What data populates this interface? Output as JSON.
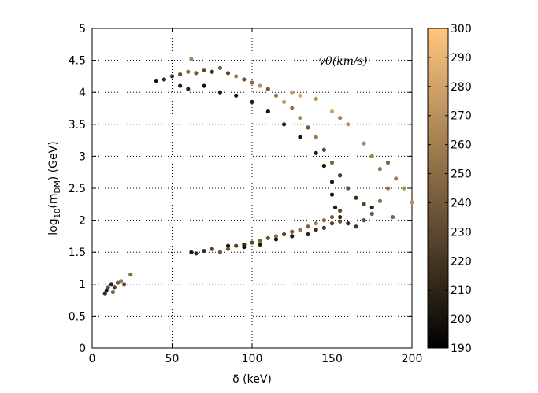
{
  "chart_data": {
    "type": "scatter",
    "xlabel": "δ (keV)",
    "ylabel_parts": [
      "log",
      "10",
      "(m",
      "DM",
      ") (GeV)"
    ],
    "annotation": "v0(km/s)",
    "xlim": [
      0,
      200
    ],
    "ylim": [
      0,
      5
    ],
    "xticks": [
      0,
      50,
      100,
      150,
      200
    ],
    "yticks": [
      0,
      0.5,
      1,
      1.5,
      2,
      2.5,
      3,
      3.5,
      4,
      4.5,
      5
    ],
    "grid": true,
    "colorbar": {
      "label_min": 190,
      "label_max": 300,
      "ticks": [
        190,
        200,
        210,
        220,
        230,
        240,
        250,
        260,
        270,
        280,
        290,
        300
      ],
      "colormap": "copper",
      "color_low": "#000000",
      "color_high": "#ffc77f"
    },
    "series": [
      {
        "points": [
          [
            8,
            0.85,
            215
          ],
          [
            10,
            0.95,
            235
          ],
          [
            12,
            1.0,
            210
          ],
          [
            14,
            0.95,
            225
          ],
          [
            16,
            1.02,
            240
          ],
          [
            18,
            1.05,
            255
          ],
          [
            20,
            1.0,
            230
          ],
          [
            24,
            1.15,
            250
          ],
          [
            9,
            0.9,
            205
          ],
          [
            13,
            0.88,
            245
          ],
          [
            40,
            4.18,
            200
          ],
          [
            45,
            4.2,
            210
          ],
          [
            50,
            4.25,
            220
          ],
          [
            55,
            4.28,
            235
          ],
          [
            60,
            4.32,
            250
          ],
          [
            62,
            4.52,
            265
          ],
          [
            65,
            4.3,
            240
          ],
          [
            70,
            4.35,
            230
          ],
          [
            75,
            4.32,
            215
          ],
          [
            80,
            4.38,
            245
          ],
          [
            85,
            4.3,
            225
          ],
          [
            90,
            4.25,
            260
          ],
          [
            95,
            4.2,
            235
          ],
          [
            100,
            4.15,
            250
          ],
          [
            105,
            4.1,
            270
          ],
          [
            110,
            4.05,
            240
          ],
          [
            115,
            3.95,
            255
          ],
          [
            120,
            3.85,
            275
          ],
          [
            125,
            3.75,
            250
          ],
          [
            130,
            3.6,
            265
          ],
          [
            135,
            3.45,
            240
          ],
          [
            140,
            3.3,
            255
          ],
          [
            145,
            3.1,
            230
          ],
          [
            150,
            2.9,
            245
          ],
          [
            155,
            2.7,
            220
          ],
          [
            160,
            2.5,
            235
          ],
          [
            165,
            2.35,
            215
          ],
          [
            170,
            2.25,
            225
          ],
          [
            175,
            2.2,
            210
          ],
          [
            55,
            4.1,
            205
          ],
          [
            60,
            4.05,
            210
          ],
          [
            70,
            4.1,
            200
          ],
          [
            80,
            4.0,
            205
          ],
          [
            90,
            3.95,
            200
          ],
          [
            100,
            3.85,
            205
          ],
          [
            110,
            3.7,
            200
          ],
          [
            120,
            3.5,
            205
          ],
          [
            130,
            3.3,
            200
          ],
          [
            140,
            3.05,
            205
          ],
          [
            145,
            2.85,
            200
          ],
          [
            150,
            2.6,
            205
          ],
          [
            150,
            2.4,
            200
          ],
          [
            152,
            2.2,
            205
          ],
          [
            155,
            2.05,
            210
          ],
          [
            160,
            1.95,
            215
          ],
          [
            165,
            1.9,
            220
          ],
          [
            170,
            2.0,
            230
          ],
          [
            175,
            2.1,
            240
          ],
          [
            180,
            2.3,
            250
          ],
          [
            185,
            2.5,
            255
          ],
          [
            190,
            2.65,
            260
          ],
          [
            195,
            2.5,
            265
          ],
          [
            200,
            2.28,
            270
          ],
          [
            188,
            2.05,
            245
          ],
          [
            160,
            3.5,
            270
          ],
          [
            170,
            3.2,
            265
          ],
          [
            175,
            3.0,
            260
          ],
          [
            180,
            2.8,
            255
          ],
          [
            185,
            2.9,
            245
          ],
          [
            155,
            3.6,
            260
          ],
          [
            150,
            3.7,
            280
          ],
          [
            140,
            3.9,
            270
          ],
          [
            130,
            3.95,
            285
          ],
          [
            125,
            4.0,
            275
          ],
          [
            62,
            1.5,
            205
          ],
          [
            65,
            1.48,
            210
          ],
          [
            70,
            1.52,
            215
          ],
          [
            75,
            1.55,
            225
          ],
          [
            80,
            1.5,
            235
          ],
          [
            85,
            1.55,
            240
          ],
          [
            90,
            1.6,
            225
          ],
          [
            95,
            1.62,
            215
          ],
          [
            100,
            1.65,
            230
          ],
          [
            105,
            1.68,
            245
          ],
          [
            110,
            1.72,
            235
          ],
          [
            115,
            1.75,
            250
          ],
          [
            120,
            1.78,
            225
          ],
          [
            125,
            1.82,
            240
          ],
          [
            130,
            1.85,
            255
          ],
          [
            135,
            1.9,
            245
          ],
          [
            140,
            1.95,
            260
          ],
          [
            145,
            2.0,
            250
          ],
          [
            150,
            2.05,
            240
          ],
          [
            155,
            2.15,
            230
          ],
          [
            85,
            1.6,
            205
          ],
          [
            95,
            1.58,
            200
          ],
          [
            105,
            1.62,
            205
          ],
          [
            115,
            1.7,
            200
          ],
          [
            125,
            1.75,
            205
          ],
          [
            135,
            1.78,
            210
          ],
          [
            140,
            1.85,
            215
          ],
          [
            145,
            1.88,
            220
          ],
          [
            150,
            1.95,
            225
          ],
          [
            155,
            1.98,
            235
          ]
        ]
      }
    ]
  }
}
